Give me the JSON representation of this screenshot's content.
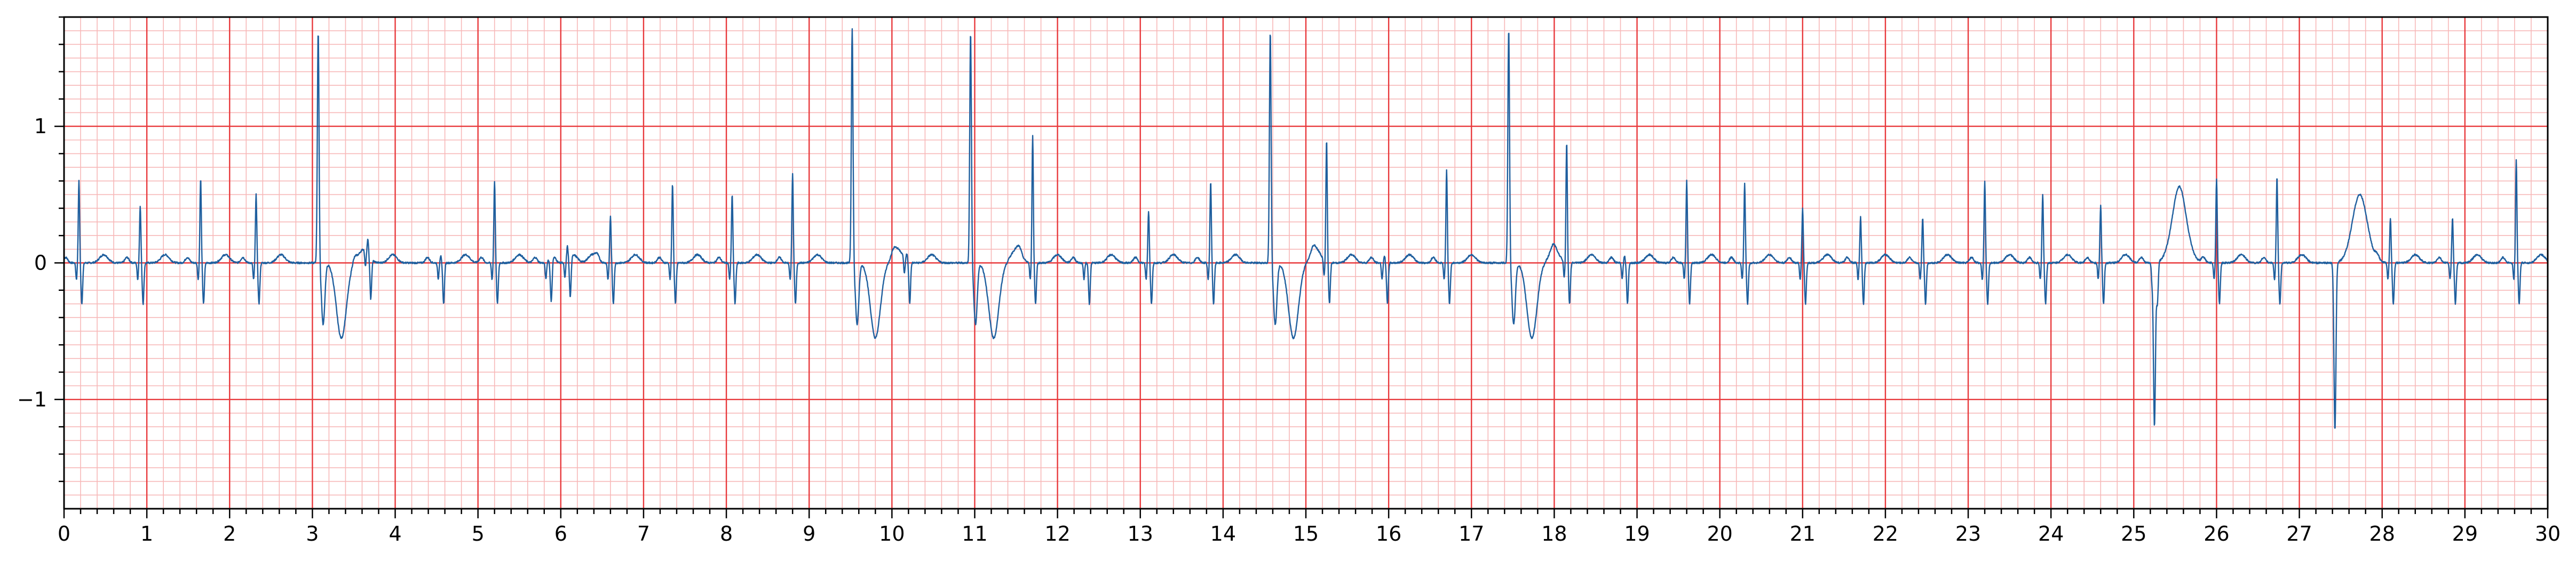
{
  "chart_data": {
    "type": "line",
    "title": "",
    "xlabel": "",
    "ylabel": "",
    "xlim": [
      0,
      30
    ],
    "ylim": [
      -1.8,
      1.8
    ],
    "x_ticks": [
      0,
      1,
      2,
      3,
      4,
      5,
      6,
      7,
      8,
      9,
      10,
      11,
      12,
      13,
      14,
      15,
      16,
      17,
      18,
      19,
      20,
      21,
      22,
      23,
      24,
      25,
      26,
      27,
      28,
      29,
      30
    ],
    "x_tick_labels": [
      "0",
      "1",
      "2",
      "3",
      "4",
      "5",
      "6",
      "7",
      "8",
      "9",
      "10",
      "11",
      "12",
      "13",
      "14",
      "15",
      "16",
      "17",
      "18",
      "19",
      "20",
      "21",
      "22",
      "23",
      "24",
      "25",
      "26",
      "27",
      "28",
      "29",
      "30"
    ],
    "y_ticks": [
      -1,
      0,
      1
    ],
    "y_tick_labels": [
      "−1",
      "0",
      "1"
    ],
    "grid": {
      "major": true,
      "minor": true,
      "major_color": "#e8393c",
      "minor_color": "#f7b8b8"
    },
    "line_color": "#1f5f9e",
    "series": [
      {
        "beats": [
          {
            "t": 0.18,
            "type": "N",
            "amp": 0.6
          },
          {
            "t": 0.92,
            "type": "N",
            "amp": 0.42
          },
          {
            "t": 1.65,
            "type": "N",
            "amp": 0.62
          },
          {
            "t": 2.32,
            "type": "N",
            "amp": 0.5
          },
          {
            "t": 3.07,
            "type": "V",
            "amp": 1.7
          },
          {
            "t": 3.67,
            "type": "N",
            "amp": 0.1
          },
          {
            "t": 4.55,
            "type": "N",
            "amp": 0.05
          },
          {
            "t": 5.2,
            "type": "N",
            "amp": 0.6
          },
          {
            "t": 5.85,
            "type": "N",
            "amp": 0.02
          },
          {
            "t": 6.08,
            "type": "N",
            "amp": 0.1
          },
          {
            "t": 6.6,
            "type": "N",
            "amp": 0.34
          },
          {
            "t": 7.35,
            "type": "N",
            "amp": 0.58
          },
          {
            "t": 8.07,
            "type": "N",
            "amp": 0.5
          },
          {
            "t": 8.8,
            "type": "N",
            "amp": 0.65
          },
          {
            "t": 9.52,
            "type": "V",
            "amp": 1.72
          },
          {
            "t": 10.18,
            "type": "N",
            "amp": 0.05
          },
          {
            "t": 10.95,
            "type": "V",
            "amp": 1.7
          },
          {
            "t": 11.7,
            "type": "N",
            "amp": 0.93
          },
          {
            "t": 12.35,
            "type": "N",
            "amp": 0.0
          },
          {
            "t": 13.1,
            "type": "N",
            "amp": 0.38
          },
          {
            "t": 13.85,
            "type": "N",
            "amp": 0.6
          },
          {
            "t": 14.57,
            "type": "V",
            "amp": 1.7
          },
          {
            "t": 15.25,
            "type": "N",
            "amp": 0.9
          },
          {
            "t": 15.95,
            "type": "N",
            "amp": 0.05
          },
          {
            "t": 16.7,
            "type": "N",
            "amp": 0.68
          },
          {
            "t": 17.45,
            "type": "V",
            "amp": 1.72
          },
          {
            "t": 18.15,
            "type": "N",
            "amp": 0.88
          },
          {
            "t": 18.85,
            "type": "N",
            "amp": 0.05
          },
          {
            "t": 19.6,
            "type": "N",
            "amp": 0.6
          },
          {
            "t": 20.3,
            "type": "N",
            "amp": 0.58
          },
          {
            "t": 21.0,
            "type": "N",
            "amp": 0.4
          },
          {
            "t": 21.7,
            "type": "N",
            "amp": 0.34
          },
          {
            "t": 22.45,
            "type": "N",
            "amp": 0.33
          },
          {
            "t": 23.2,
            "type": "N",
            "amp": 0.6
          },
          {
            "t": 23.9,
            "type": "N",
            "amp": 0.5
          },
          {
            "t": 24.6,
            "type": "N",
            "amp": 0.42
          },
          {
            "t": 25.25,
            "type": "N",
            "amp": 0.02
          },
          {
            "t": 25.25,
            "type": "S",
            "amp": -1.22
          },
          {
            "t": 26.0,
            "type": "N",
            "amp": 0.62
          },
          {
            "t": 26.73,
            "type": "N",
            "amp": 0.63
          },
          {
            "t": 27.43,
            "type": "S",
            "amp": -1.23
          },
          {
            "t": 28.1,
            "type": "N",
            "amp": 0.33
          },
          {
            "t": 28.85,
            "type": "N",
            "amp": 0.33
          },
          {
            "t": 29.62,
            "type": "N",
            "amp": 0.75
          }
        ]
      }
    ]
  }
}
